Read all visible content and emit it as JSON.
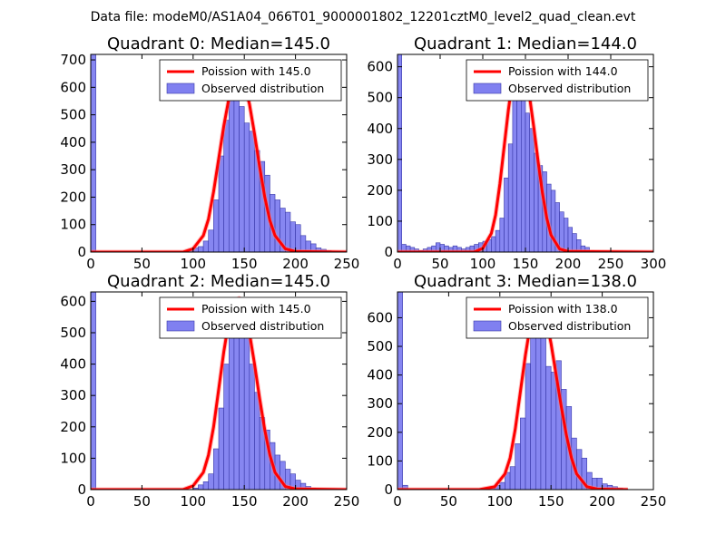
{
  "figure": {
    "suptitle": "Data file: modeM0/AS1A04_066T01_9000001802_12201cztM0_level2_quad_clean.evt"
  },
  "colors": {
    "bar_fill": "#8080f0",
    "bar_edge": "#3838a8",
    "poisson_line": "#ff0000",
    "poisson_line_faded": "#ff8080",
    "axis": "#000000"
  },
  "chart_data": [
    {
      "type": "bar",
      "title": "Quadrant 0: Median=145.0",
      "xlim": [
        0,
        250
      ],
      "ylim": [
        0,
        720
      ],
      "xticks": [
        0,
        50,
        100,
        150,
        200,
        250
      ],
      "yticks": [
        0,
        100,
        200,
        300,
        400,
        500,
        600,
        700
      ],
      "legend_position": "top-right",
      "legend": [
        "Poission with 145.0",
        "Observed distribution"
      ],
      "histogram": {
        "bin_width": 5,
        "bins": [
          [
            0,
            720
          ],
          [
            95,
            10
          ],
          [
            100,
            15
          ],
          [
            105,
            20
          ],
          [
            110,
            40
          ],
          [
            115,
            80
          ],
          [
            120,
            190
          ],
          [
            125,
            350
          ],
          [
            130,
            480
          ],
          [
            135,
            580
          ],
          [
            140,
            600
          ],
          [
            145,
            530
          ],
          [
            150,
            470
          ],
          [
            155,
            440
          ],
          [
            160,
            370
          ],
          [
            165,
            330
          ],
          [
            170,
            280
          ],
          [
            175,
            210
          ],
          [
            180,
            190
          ],
          [
            185,
            160
          ],
          [
            190,
            145
          ],
          [
            195,
            110
          ],
          [
            200,
            100
          ],
          [
            205,
            60
          ],
          [
            210,
            40
          ],
          [
            215,
            30
          ],
          [
            220,
            15
          ],
          [
            225,
            10
          ],
          [
            230,
            5
          ],
          [
            235,
            2
          ]
        ]
      },
      "poisson": {
        "label": "Poission with 145.0",
        "x": [
          0,
          90,
          100,
          110,
          115,
          120,
          125,
          130,
          135,
          140,
          145,
          150,
          155,
          160,
          165,
          170,
          175,
          180,
          190,
          200,
          250
        ],
        "y": [
          0,
          0,
          12,
          60,
          120,
          220,
          340,
          460,
          560,
          620,
          640,
          610,
          540,
          430,
          310,
          200,
          115,
          60,
          12,
          2,
          0
        ]
      }
    },
    {
      "type": "bar",
      "title": "Quadrant 1: Median=144.0",
      "xlim": [
        0,
        300
      ],
      "ylim": [
        0,
        640
      ],
      "xticks": [
        0,
        50,
        100,
        150,
        200,
        250,
        300
      ],
      "yticks": [
        0,
        100,
        200,
        300,
        400,
        500,
        600
      ],
      "legend_position": "top-right",
      "legend": [
        "Poission with 144.0",
        "Observed distribution"
      ],
      "histogram": {
        "bin_width": 5,
        "bins": [
          [
            0,
            640
          ],
          [
            5,
            25
          ],
          [
            10,
            20
          ],
          [
            15,
            15
          ],
          [
            20,
            10
          ],
          [
            25,
            5
          ],
          [
            30,
            10
          ],
          [
            35,
            15
          ],
          [
            40,
            20
          ],
          [
            45,
            30
          ],
          [
            50,
            25
          ],
          [
            55,
            20
          ],
          [
            60,
            15
          ],
          [
            65,
            20
          ],
          [
            70,
            15
          ],
          [
            75,
            10
          ],
          [
            80,
            15
          ],
          [
            85,
            20
          ],
          [
            90,
            25
          ],
          [
            95,
            30
          ],
          [
            100,
            35
          ],
          [
            105,
            40
          ],
          [
            110,
            50
          ],
          [
            115,
            70
          ],
          [
            120,
            110
          ],
          [
            125,
            240
          ],
          [
            130,
            350
          ],
          [
            135,
            530
          ],
          [
            140,
            610
          ],
          [
            145,
            560
          ],
          [
            150,
            450
          ],
          [
            155,
            400
          ],
          [
            160,
            320
          ],
          [
            165,
            280
          ],
          [
            170,
            260
          ],
          [
            175,
            220
          ],
          [
            180,
            200
          ],
          [
            185,
            160
          ],
          [
            190,
            130
          ],
          [
            195,
            110
          ],
          [
            200,
            80
          ],
          [
            205,
            60
          ],
          [
            210,
            40
          ],
          [
            215,
            20
          ],
          [
            220,
            15
          ],
          [
            225,
            5
          ]
        ]
      },
      "poisson": {
        "label": "Poission with 144.0",
        "x": [
          0,
          90,
          100,
          110,
          115,
          120,
          125,
          130,
          135,
          140,
          145,
          150,
          155,
          160,
          165,
          170,
          175,
          180,
          190,
          200,
          300
        ],
        "y": [
          0,
          0,
          12,
          60,
          120,
          220,
          340,
          460,
          560,
          610,
          610,
          580,
          500,
          400,
          290,
          190,
          110,
          55,
          10,
          2,
          0
        ]
      }
    },
    {
      "type": "bar",
      "title": "Quadrant 2: Median=145.0",
      "xlim": [
        0,
        250
      ],
      "ylim": [
        0,
        630
      ],
      "xticks": [
        0,
        50,
        100,
        150,
        200,
        250
      ],
      "yticks": [
        0,
        100,
        200,
        300,
        400,
        500,
        600
      ],
      "legend_position": "top-right",
      "legend": [
        "Poission with 145.0",
        "Observed distribution"
      ],
      "histogram": {
        "bin_width": 5,
        "bins": [
          [
            0,
            630
          ],
          [
            100,
            5
          ],
          [
            105,
            15
          ],
          [
            110,
            25
          ],
          [
            115,
            50
          ],
          [
            120,
            130
          ],
          [
            125,
            260
          ],
          [
            130,
            400
          ],
          [
            135,
            540
          ],
          [
            140,
            600
          ],
          [
            145,
            580
          ],
          [
            150,
            520
          ],
          [
            155,
            400
          ],
          [
            160,
            310
          ],
          [
            165,
            230
          ],
          [
            170,
            190
          ],
          [
            175,
            150
          ],
          [
            180,
            110
          ],
          [
            185,
            90
          ],
          [
            190,
            65
          ],
          [
            195,
            50
          ],
          [
            200,
            30
          ],
          [
            205,
            20
          ],
          [
            210,
            10
          ],
          [
            215,
            5
          ]
        ]
      },
      "poisson": {
        "label": "Poission with 145.0",
        "x": [
          0,
          90,
          100,
          110,
          115,
          120,
          125,
          130,
          135,
          140,
          145,
          150,
          155,
          160,
          165,
          170,
          175,
          180,
          190,
          200,
          250
        ],
        "y": [
          0,
          0,
          12,
          55,
          110,
          200,
          320,
          440,
          540,
          600,
          610,
          580,
          500,
          400,
          290,
          190,
          110,
          55,
          10,
          2,
          0
        ]
      }
    },
    {
      "type": "bar",
      "title": "Quadrant 3: Median=138.0",
      "xlim": [
        0,
        250
      ],
      "ylim": [
        0,
        690
      ],
      "xticks": [
        0,
        50,
        100,
        150,
        200,
        250
      ],
      "yticks": [
        0,
        100,
        200,
        300,
        400,
        500,
        600
      ],
      "legend_position": "top-right",
      "legend": [
        "Poission with 138.0",
        "Observed distribution"
      ],
      "histogram": {
        "bin_width": 5,
        "bins": [
          [
            0,
            690
          ],
          [
            5,
            15
          ],
          [
            90,
            10
          ],
          [
            95,
            15
          ],
          [
            100,
            25
          ],
          [
            105,
            60
          ],
          [
            110,
            80
          ],
          [
            115,
            160
          ],
          [
            120,
            250
          ],
          [
            125,
            440
          ],
          [
            130,
            620
          ],
          [
            135,
            600
          ],
          [
            140,
            560
          ],
          [
            145,
            430
          ],
          [
            150,
            410
          ],
          [
            155,
            450
          ],
          [
            160,
            350
          ],
          [
            165,
            290
          ],
          [
            170,
            180
          ],
          [
            175,
            140
          ],
          [
            180,
            110
          ],
          [
            185,
            60
          ],
          [
            190,
            40
          ],
          [
            195,
            40
          ],
          [
            200,
            20
          ],
          [
            205,
            15
          ],
          [
            210,
            10
          ],
          [
            215,
            5
          ],
          [
            220,
            2
          ]
        ]
      },
      "poisson": {
        "label": "Poission with 138.0",
        "x": [
          0,
          80,
          95,
          105,
          110,
          115,
          120,
          125,
          130,
          135,
          140,
          145,
          150,
          155,
          160,
          165,
          170,
          175,
          185,
          195,
          225
        ],
        "y": [
          0,
          0,
          10,
          55,
          110,
          210,
          340,
          470,
          580,
          640,
          650,
          600,
          510,
          400,
          290,
          190,
          110,
          55,
          10,
          2,
          0
        ]
      }
    }
  ]
}
